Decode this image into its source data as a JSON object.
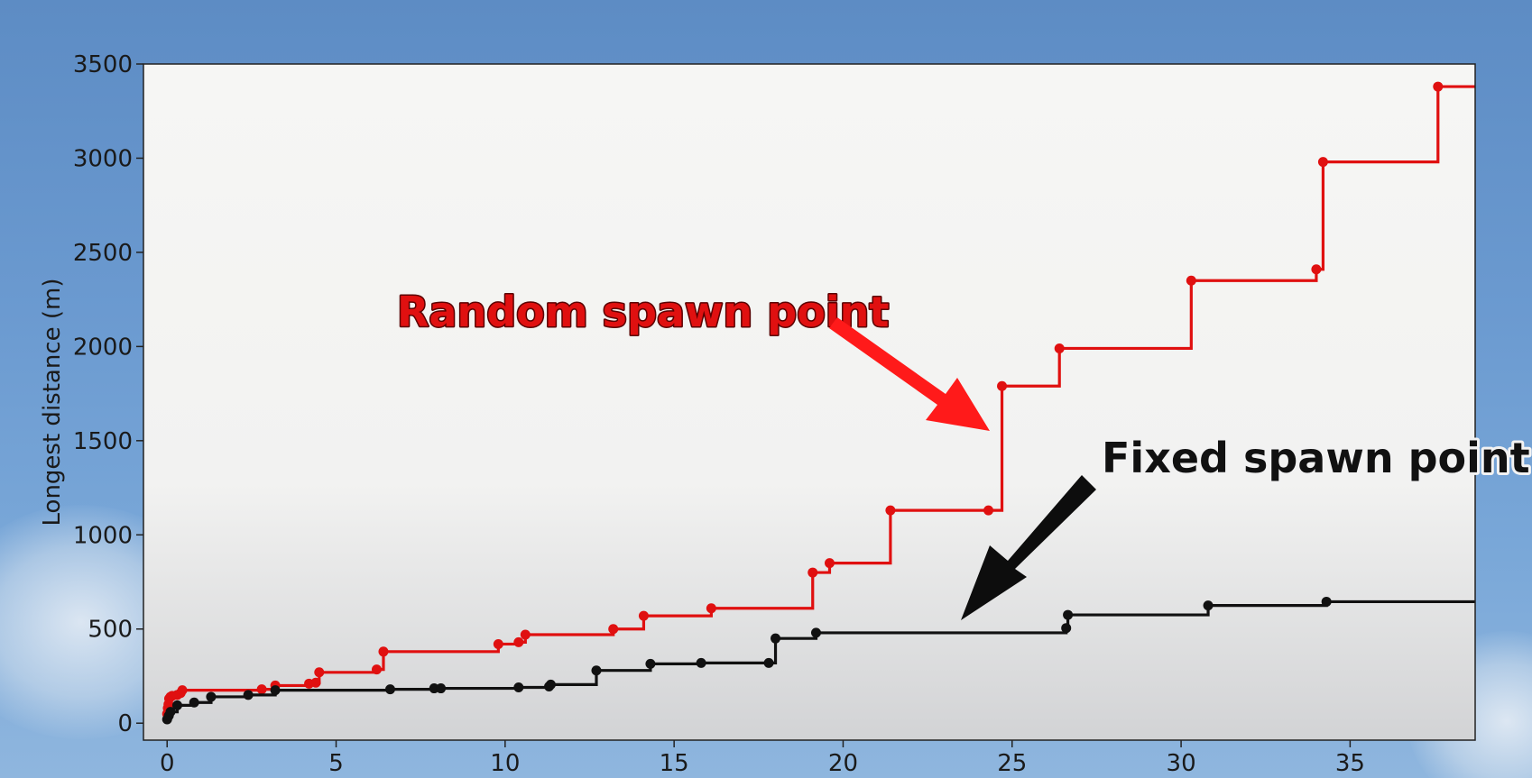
{
  "chart_data": {
    "type": "line",
    "step": true,
    "xlabel": "",
    "ylabel": "Longest distance (m)",
    "xlim": [
      -0.7,
      38.7
    ],
    "ylim": [
      -90,
      3500
    ],
    "xticks": [
      0,
      5,
      10,
      15,
      20,
      25,
      30,
      35
    ],
    "yticks": [
      0,
      500,
      1000,
      1500,
      2000,
      2500,
      3000,
      3500
    ],
    "grid": false,
    "series": [
      {
        "name": "Random spawn point",
        "color": "#e01010",
        "x": [
          0,
          0.02,
          0.04,
          0.06,
          0.1,
          0.15,
          0.3,
          0.4,
          0.45,
          2.8,
          3.2,
          4.2,
          4.4,
          4.5,
          6.2,
          6.4,
          9.8,
          10.4,
          10.6,
          13.2,
          14.1,
          16.1,
          19.1,
          19.6,
          21.4,
          24.3,
          24.7,
          26.4,
          30.3,
          34.0,
          34.2,
          37.6,
          38.7
        ],
        "y": [
          50,
          80,
          100,
          130,
          140,
          145,
          150,
          160,
          175,
          180,
          200,
          210,
          215,
          270,
          285,
          380,
          420,
          430,
          470,
          500,
          570,
          610,
          800,
          850,
          1130,
          1130,
          1790,
          1990,
          2350,
          2410,
          2980,
          3380,
          3380
        ]
      },
      {
        "name": "Fixed spawn point",
        "color": "#111111",
        "x": [
          0,
          0.05,
          0.1,
          0.3,
          0.8,
          1.3,
          2.4,
          3.2,
          6.6,
          7.9,
          8.1,
          10.4,
          11.3,
          11.35,
          12.7,
          14.3,
          15.8,
          17.8,
          18.0,
          19.2,
          26.6,
          26.65,
          30.8,
          34.3,
          38.7
        ],
        "y": [
          20,
          40,
          60,
          95,
          110,
          140,
          150,
          175,
          180,
          185,
          185,
          190,
          195,
          205,
          280,
          315,
          320,
          320,
          450,
          480,
          505,
          575,
          625,
          645,
          645
        ]
      }
    ],
    "annotations": [
      {
        "text": "Random spawn point",
        "color": "#e01010"
      },
      {
        "text": "Fixed spawn point",
        "color": "#111111"
      }
    ]
  }
}
